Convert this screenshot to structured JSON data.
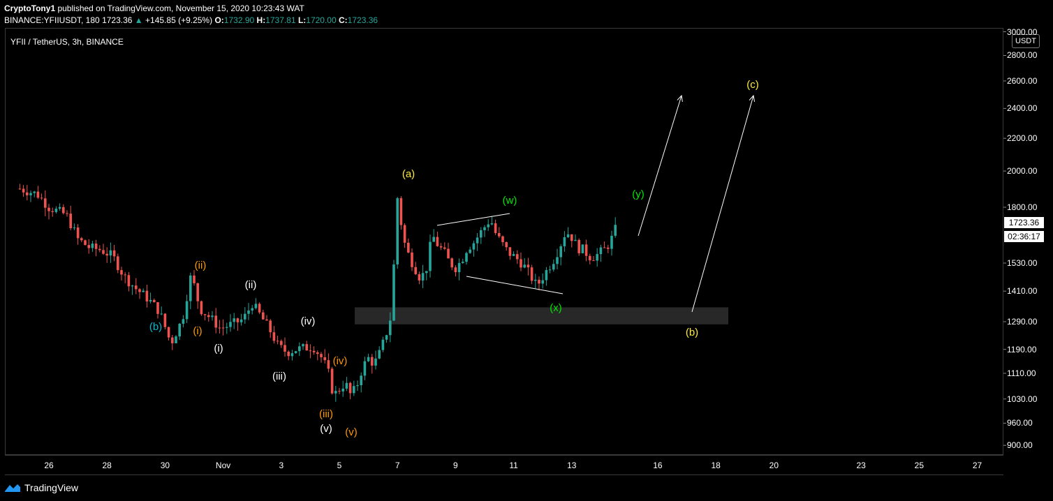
{
  "header": {
    "publisher": "CryptoTony1",
    "published_text": " published on TradingView.com, November 15, 2020 10:23:43 WAT",
    "symbol": "BINANCE:YFIIUSDT, 180",
    "last": "1723.36",
    "change": "+145.85 (+9.25%)",
    "open_label": "O:",
    "open": "1732.90",
    "high_label": "H:",
    "high": "1737.81",
    "low_label": "L:",
    "low": "1720.00",
    "close_label": "C:",
    "close": "1723.36"
  },
  "chart_title": "YFII / TetherUS, 3h, BINANCE",
  "currency": "USDT",
  "price_tag": "1723.36",
  "countdown_tag": "02:36:17",
  "footer": {
    "brand": "TradingView"
  },
  "colors": {
    "up": "#26a69a",
    "down": "#ef5350",
    "orange": "#ff9800",
    "yellow": "#ffeb3b",
    "green": "#00e600",
    "cyan": "#00bcd4"
  },
  "chart_data": {
    "type": "candlestick",
    "y_scale": "log",
    "y_ticks": [
      "3000.00",
      "2800.00",
      "2600.00",
      "2400.00",
      "2200.00",
      "2000.00",
      "1800.00",
      "1530.00",
      "1410.00",
      "1290.00",
      "1190.00",
      "1110.00",
      "1030.00",
      "960.00",
      "900.00"
    ],
    "x_ticks": [
      "26",
      "28",
      "30",
      "Nov",
      "3",
      "5",
      "7",
      "9",
      "11",
      "13",
      "16",
      "18",
      "20",
      "23",
      "25",
      "27"
    ],
    "price_path": [
      [
        25.0,
        1900
      ],
      [
        25.6,
        1870
      ],
      [
        26.0,
        1800
      ],
      [
        26.6,
        1760
      ],
      [
        27.0,
        1640
      ],
      [
        27.4,
        1600
      ],
      [
        27.8,
        1590
      ],
      [
        28.2,
        1560
      ],
      [
        28.6,
        1470
      ],
      [
        29.0,
        1420
      ],
      [
        29.4,
        1380
      ],
      [
        29.8,
        1330
      ],
      [
        30.2,
        1210
      ],
      [
        30.6,
        1300
      ],
      [
        30.9,
        1480
      ],
      [
        31.2,
        1340
      ],
      [
        31.6,
        1300
      ],
      [
        31.9,
        1265
      ],
      [
        32.3,
        1280
      ],
      [
        32.7,
        1300
      ],
      [
        33.0,
        1360
      ],
      [
        33.3,
        1310
      ],
      [
        33.6,
        1260
      ],
      [
        33.9,
        1200
      ],
      [
        34.2,
        1180
      ],
      [
        34.5,
        1190
      ],
      [
        34.8,
        1195
      ],
      [
        35.1,
        1200
      ],
      [
        35.4,
        1160
      ],
      [
        35.6,
        1120
      ],
      [
        35.8,
        1040
      ],
      [
        36.0,
        1060
      ],
      [
        36.2,
        1080
      ],
      [
        36.4,
        1040
      ],
      [
        36.6,
        1070
      ],
      [
        36.8,
        1130
      ],
      [
        37.0,
        1160
      ],
      [
        37.2,
        1140
      ],
      [
        37.4,
        1180
      ],
      [
        37.6,
        1240
      ],
      [
        37.8,
        1320
      ],
      [
        38.0,
        1850
      ],
      [
        38.2,
        1640
      ],
      [
        38.4,
        1560
      ],
      [
        38.6,
        1510
      ],
      [
        38.8,
        1460
      ],
      [
        39.0,
        1510
      ],
      [
        39.2,
        1660
      ],
      [
        39.4,
        1610
      ],
      [
        39.6,
        1580
      ],
      [
        39.8,
        1530
      ],
      [
        40.0,
        1510
      ],
      [
        40.2,
        1540
      ],
      [
        40.4,
        1600
      ],
      [
        40.6,
        1620
      ],
      [
        40.8,
        1660
      ],
      [
        41.0,
        1700
      ],
      [
        41.2,
        1740
      ],
      [
        41.4,
        1660
      ],
      [
        41.6,
        1620
      ],
      [
        41.8,
        1580
      ],
      [
        42.0,
        1560
      ],
      [
        42.2,
        1540
      ],
      [
        42.4,
        1510
      ],
      [
        42.6,
        1470
      ],
      [
        42.8,
        1430
      ],
      [
        43.0,
        1470
      ],
      [
        43.2,
        1510
      ],
      [
        43.4,
        1550
      ],
      [
        43.6,
        1610
      ],
      [
        43.8,
        1680
      ],
      [
        44.0,
        1650
      ],
      [
        44.2,
        1600
      ],
      [
        44.4,
        1590
      ],
      [
        44.6,
        1560
      ],
      [
        44.8,
        1560
      ],
      [
        45.0,
        1580
      ],
      [
        45.2,
        1600
      ],
      [
        45.4,
        1650
      ],
      [
        45.6,
        1723
      ]
    ]
  },
  "zone": {
    "low": 1280,
    "high": 1345
  },
  "wave_labels": {
    "ii_o": "(ii)",
    "i_o": "(i)",
    "ii_w": "(ii)",
    "i_w": "(i)",
    "iv_w": "(iv)",
    "iii_w": "(iii)",
    "iv_o": "(iv)",
    "iii_o": "(iii)",
    "v_w": "(v)",
    "v_o": "(v)",
    "a_y": "(a)",
    "w_g": "(w)",
    "x_g": "(x)",
    "y_g": "(y)",
    "b_y": "(b)",
    "c_y": "(c)",
    "b_c": "(b)"
  }
}
